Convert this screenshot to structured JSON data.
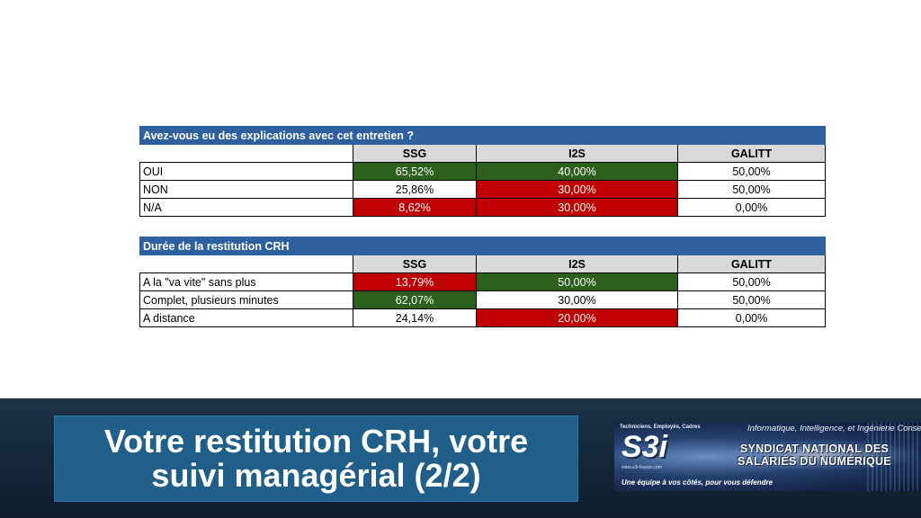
{
  "tables": [
    {
      "title": "Avez-vous eu des explications avec cet entretien ?",
      "headers": [
        "SSG",
        "I2S",
        "GALITT"
      ],
      "rows": [
        {
          "label": "OUI",
          "cells": [
            {
              "value": "65,52%",
              "status": "green"
            },
            {
              "value": "40,00%",
              "status": "green"
            },
            {
              "value": "50,00%",
              "status": "none"
            }
          ]
        },
        {
          "label": "NON",
          "cells": [
            {
              "value": "25,86%",
              "status": "none"
            },
            {
              "value": "30,00%",
              "status": "red"
            },
            {
              "value": "50,00%",
              "status": "none"
            }
          ]
        },
        {
          "label": "N/A",
          "cells": [
            {
              "value": "8,62%",
              "status": "red"
            },
            {
              "value": "30,00%",
              "status": "red"
            },
            {
              "value": "0,00%",
              "status": "none"
            }
          ]
        }
      ]
    },
    {
      "title": "Durée de la restitution CRH",
      "headers": [
        "SSG",
        "I2S",
        "GALITT"
      ],
      "rows": [
        {
          "label": "A la \"va vite\" sans plus",
          "cells": [
            {
              "value": "13,79%",
              "status": "red"
            },
            {
              "value": "50,00%",
              "status": "green"
            },
            {
              "value": "50,00%",
              "status": "none"
            }
          ]
        },
        {
          "label": "Complet, plusieurs minutes",
          "cells": [
            {
              "value": "62,07%",
              "status": "green"
            },
            {
              "value": "30,00%",
              "status": "none"
            },
            {
              "value": "50,00%",
              "status": "none"
            }
          ]
        },
        {
          "label": "A distance",
          "cells": [
            {
              "value": "24,14%",
              "status": "none"
            },
            {
              "value": "20,00%",
              "status": "red"
            },
            {
              "value": "0,00%",
              "status": "none"
            }
          ]
        }
      ]
    }
  ],
  "slide_title": "Votre restitution CRH, votre suivi managérial (2/2)",
  "logo": {
    "mark": "S3i",
    "tagline_top": "Techniciens, Employés, Cadres",
    "subtitle": "Informatique, Intelligence, et Ingénierie Conseil",
    "name_line1": "SYNDICAT NATIONAL DES",
    "name_line2": "SALARIÉS DU NUMÉRIQUE",
    "url": "www.s3i-france.com",
    "slogan": "Une équipe à vos côtés, pour vous défendre"
  },
  "colors": {
    "header_blue": "#2e5f9e",
    "good_green": "#2d5f1d",
    "bad_red": "#c00000",
    "footer_dark": "#0d1d2d",
    "title_box": "#1f5f8a"
  }
}
